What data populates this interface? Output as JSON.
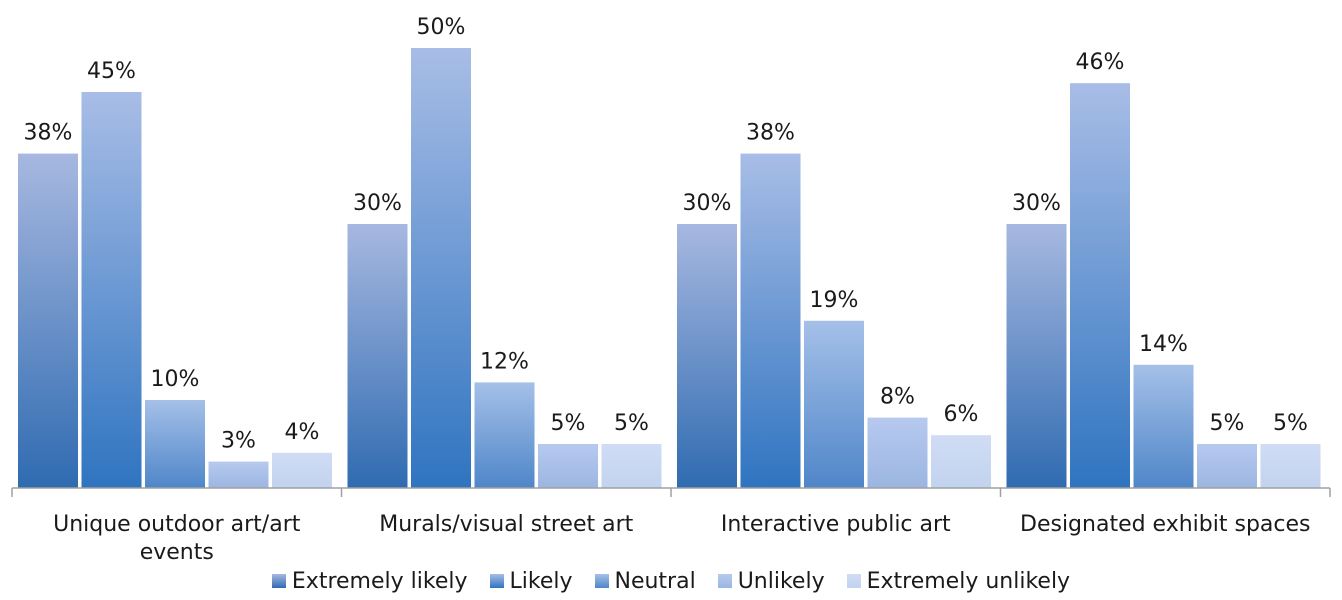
{
  "chart_data": {
    "type": "bar",
    "categories": [
      [
        "Unique outdoor art/art",
        "events"
      ],
      [
        "Murals/visual street art"
      ],
      [
        "Interactive public art"
      ],
      [
        "Designated exhibit spaces"
      ]
    ],
    "series": [
      {
        "name": "Extremely likely",
        "values": [
          38,
          30,
          30,
          30
        ],
        "labels": [
          "38%",
          "30%",
          "30%",
          "30%"
        ],
        "colors": [
          "#a7b8e0",
          "#2f6bb1"
        ]
      },
      {
        "name": "Likely",
        "values": [
          45,
          50,
          38,
          46
        ],
        "labels": [
          "45%",
          "50%",
          "38%",
          "46%"
        ],
        "colors": [
          "#a8bde6",
          "#2f74c0"
        ]
      },
      {
        "name": "Neutral",
        "values": [
          10,
          12,
          19,
          14
        ],
        "labels": [
          "10%",
          "12%",
          "19%",
          "14%"
        ],
        "colors": [
          "#a5c0e8",
          "#4f86c9"
        ]
      },
      {
        "name": "Unlikely",
        "values": [
          3,
          5,
          8,
          5
        ],
        "labels": [
          "3%",
          "5%",
          "8%",
          "5%"
        ],
        "colors": [
          "#b7c9ef",
          "#9bb6e2"
        ]
      },
      {
        "name": "Extremely unlikely",
        "values": [
          4,
          5,
          6,
          5
        ],
        "labels": [
          "4%",
          "5%",
          "6%",
          "5%"
        ],
        "colors": [
          "#d0dcf4",
          "#c2d3ef"
        ]
      }
    ],
    "ylim": [
      0,
      52
    ],
    "grid": false,
    "legend_position": "bottom",
    "axis_color": "#a0a0a0"
  }
}
